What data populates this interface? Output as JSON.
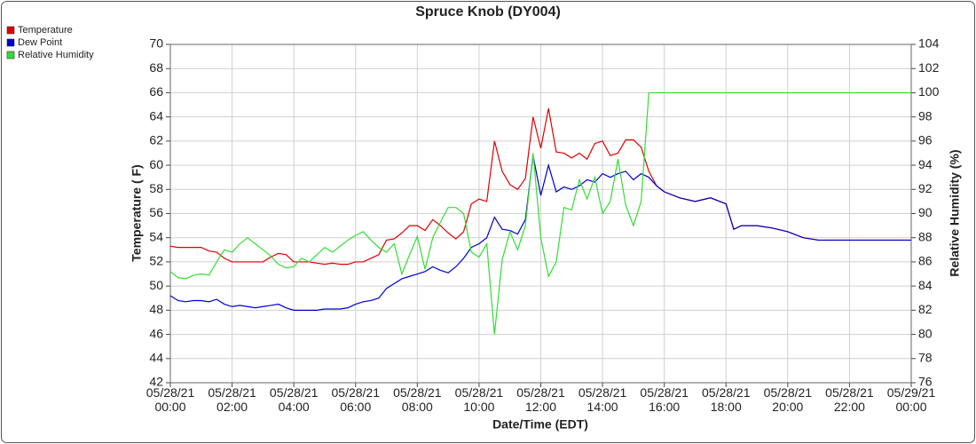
{
  "chart_data": {
    "type": "line",
    "title": "Spruce Knob (DY004)",
    "x_label": "Date/Time (EDT)",
    "y_label": "Temperature ( F)",
    "y2_label": "Relative Humidity (%)",
    "grid": true,
    "legend": "top-left",
    "x": [
      0,
      0.25,
      0.5,
      0.75,
      1,
      1.25,
      1.5,
      1.75,
      2,
      2.25,
      2.5,
      2.75,
      3,
      3.25,
      3.5,
      3.75,
      4,
      4.25,
      4.5,
      4.75,
      5,
      5.25,
      5.5,
      5.75,
      6,
      6.25,
      6.5,
      6.75,
      7,
      7.25,
      7.5,
      7.75,
      8,
      8.25,
      8.5,
      8.75,
      9,
      9.25,
      9.5,
      9.75,
      10,
      10.25,
      10.5,
      10.75,
      11,
      11.25,
      11.5,
      11.75,
      12,
      12.25,
      12.5,
      12.75,
      13,
      13.25,
      13.5,
      13.75,
      14,
      14.25,
      14.5,
      14.75,
      15,
      15.25,
      15.5,
      15.75,
      16,
      16.5,
      17,
      17.5,
      18,
      18.25,
      18.5,
      19,
      19.5,
      20,
      20.5,
      21,
      24
    ],
    "xlim": [
      0,
      24
    ],
    "xticks": [
      {
        "value": 0,
        "label": "05/28/21\n00:00"
      },
      {
        "value": 2,
        "label": "05/28/21\n02:00"
      },
      {
        "value": 4,
        "label": "05/28/21\n04:00"
      },
      {
        "value": 6,
        "label": "05/28/21\n06:00"
      },
      {
        "value": 8,
        "label": "05/28/21\n08:00"
      },
      {
        "value": 10,
        "label": "05/28/21\n10:00"
      },
      {
        "value": 12,
        "label": "05/28/21\n12:00"
      },
      {
        "value": 14,
        "label": "05/28/21\n14:00"
      },
      {
        "value": 16,
        "label": "05/28/21\n16:00"
      },
      {
        "value": 18,
        "label": "05/28/21\n18:00"
      },
      {
        "value": 20,
        "label": "05/28/21\n20:00"
      },
      {
        "value": 22,
        "label": "05/28/21\n22:00"
      },
      {
        "value": 24,
        "label": "05/29/21\n00:00"
      }
    ],
    "ylim": [
      42,
      70
    ],
    "yticks": [
      42,
      44,
      46,
      48,
      50,
      52,
      54,
      56,
      58,
      60,
      62,
      64,
      66,
      68,
      70
    ],
    "y2lim": [
      76,
      104
    ],
    "y2ticks": [
      76,
      78,
      80,
      82,
      84,
      86,
      88,
      90,
      92,
      94,
      96,
      98,
      100,
      102,
      104
    ],
    "series": [
      {
        "name": "Temperature",
        "color": "#e00000",
        "values": [
          53.3,
          53.2,
          53.2,
          53.2,
          53.2,
          52.9,
          52.8,
          52.3,
          52.0,
          52.0,
          52.0,
          52.0,
          52.0,
          52.4,
          52.7,
          52.6,
          52.0,
          52.0,
          52.0,
          51.9,
          51.8,
          51.9,
          51.8,
          51.8,
          52.0,
          52.0,
          52.3,
          52.6,
          53.8,
          53.9,
          54.4,
          55.0,
          55.0,
          54.6,
          55.5,
          55.0,
          54.4,
          53.9,
          54.5,
          56.8,
          57.2,
          57.0,
          62.0,
          59.5,
          58.4,
          58.0,
          58.9,
          64.0,
          61.4,
          64.7,
          61.1,
          61.0,
          60.6,
          61.0,
          60.5,
          61.8,
          62.0,
          60.8,
          61.0,
          62.1,
          62.1,
          61.5,
          59.5,
          58.3,
          57.8,
          57.3,
          57.0,
          57.3,
          56.8,
          54.7,
          55.0,
          55.0,
          54.8,
          54.5,
          54.0,
          53.8,
          53.8
        ]
      },
      {
        "name": "Dew Point",
        "color": "#0000cc",
        "values": [
          49.2,
          48.8,
          48.7,
          48.8,
          48.8,
          48.7,
          48.9,
          48.5,
          48.3,
          48.4,
          48.3,
          48.2,
          48.3,
          48.4,
          48.5,
          48.2,
          48.0,
          48.0,
          48.0,
          48.0,
          48.1,
          48.1,
          48.1,
          48.2,
          48.5,
          48.7,
          48.8,
          49.0,
          49.8,
          50.2,
          50.6,
          50.8,
          51.0,
          51.2,
          51.6,
          51.3,
          51.1,
          51.6,
          52.3,
          53.2,
          53.5,
          54.0,
          55.7,
          54.7,
          54.6,
          54.3,
          55.5,
          60.8,
          57.5,
          60.0,
          57.8,
          58.2,
          58.0,
          58.3,
          58.8,
          58.6,
          59.3,
          59.0,
          59.3,
          59.5,
          58.8,
          59.3,
          59.0,
          58.3,
          57.8,
          57.3,
          57.0,
          57.3,
          56.8,
          54.7,
          55.0,
          55.0,
          54.8,
          54.5,
          54.0,
          53.8,
          53.8
        ]
      },
      {
        "name": "Relative Humidity",
        "color": "#33dd33",
        "axis": "y2",
        "values": [
          85.2,
          84.7,
          84.6,
          84.9,
          85.0,
          84.9,
          86.0,
          87.0,
          86.8,
          87.5,
          88.0,
          87.5,
          87.0,
          86.5,
          85.8,
          85.5,
          85.6,
          86.3,
          86.0,
          86.6,
          87.2,
          86.8,
          87.3,
          87.8,
          88.2,
          88.5,
          87.8,
          87.2,
          86.8,
          87.5,
          85.0,
          86.6,
          88.1,
          85.4,
          88.0,
          89.3,
          90.5,
          90.5,
          90.0,
          86.8,
          86.4,
          87.5,
          80.0,
          86.2,
          88.5,
          87.0,
          89.0,
          95.0,
          88.0,
          84.8,
          86.0,
          90.5,
          90.3,
          92.8,
          91.2,
          93.0,
          90.0,
          91.0,
          94.5,
          90.7,
          89.0,
          91.0,
          100,
          100,
          100,
          100,
          100,
          100,
          100,
          100,
          100,
          100,
          100,
          100,
          100,
          100,
          100
        ]
      }
    ]
  }
}
